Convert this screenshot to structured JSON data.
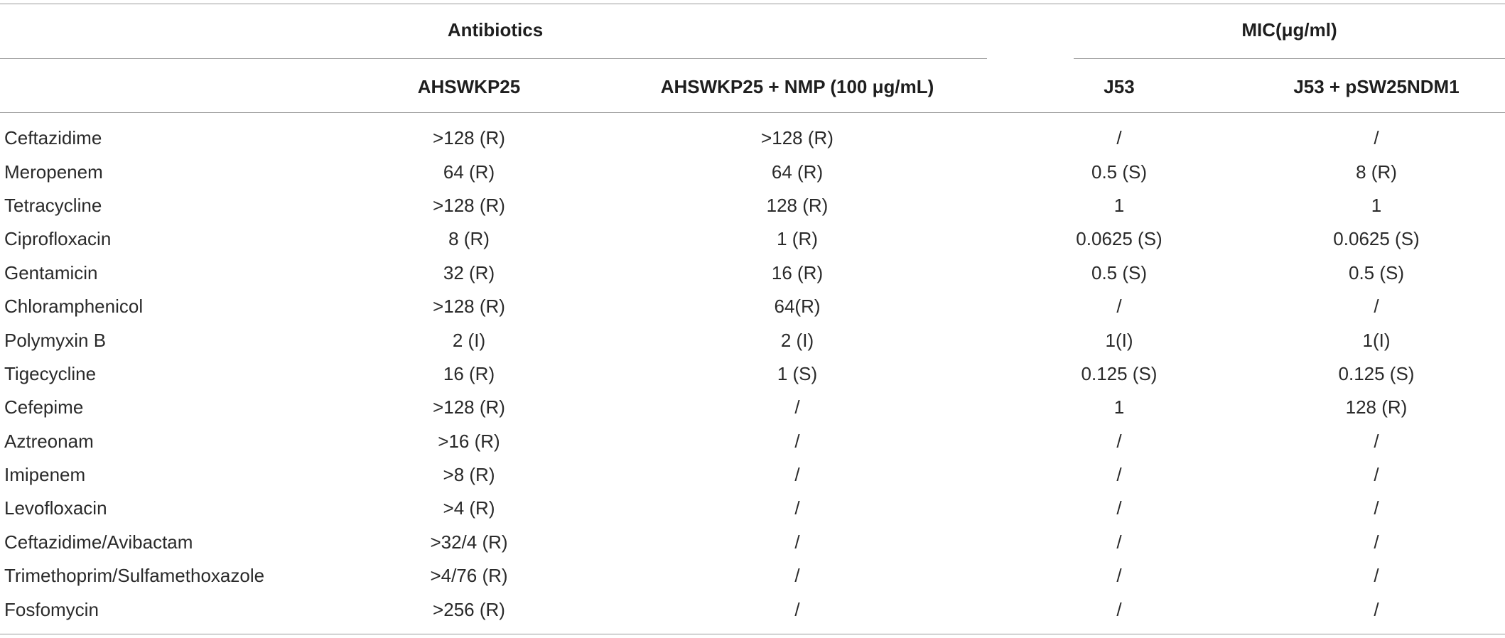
{
  "table": {
    "group_headers": [
      "Antibiotics",
      "MIC(μg/ml)"
    ],
    "columns": [
      "",
      "AHSWKP25",
      "AHSWKP25 + NMP (100 μg/mL)",
      "J53",
      "J53 + pSW25NDM1"
    ],
    "rows": [
      [
        "Ceftazidime",
        ">128 (R)",
        ">128 (R)",
        "/",
        "/"
      ],
      [
        "Meropenem",
        "64 (R)",
        "64 (R)",
        "0.5 (S)",
        "8 (R)"
      ],
      [
        "Tetracycline",
        ">128 (R)",
        "128 (R)",
        "1",
        "1"
      ],
      [
        "Ciprofloxacin",
        "8 (R)",
        "1 (R)",
        "0.0625 (S)",
        "0.0625 (S)"
      ],
      [
        "Gentamicin",
        "32 (R)",
        "16 (R)",
        "0.5 (S)",
        "0.5 (S)"
      ],
      [
        "Chloramphenicol",
        ">128 (R)",
        "64(R)",
        "/",
        "/"
      ],
      [
        "Polymyxin B",
        "2 (I)",
        "2 (I)",
        "1(I)",
        "1(I)"
      ],
      [
        "Tigecycline",
        "16 (R)",
        "1 (S)",
        "0.125 (S)",
        "0.125 (S)"
      ],
      [
        "Cefepime",
        ">128 (R)",
        "/",
        "1",
        "128 (R)"
      ],
      [
        "Aztreonam",
        ">16 (R)",
        "/",
        "/",
        "/"
      ],
      [
        "Imipenem",
        ">8 (R)",
        "/",
        "/",
        "/"
      ],
      [
        "Levofloxacin",
        ">4 (R)",
        "/",
        "/",
        "/"
      ],
      [
        "Ceftazidime/Avibactam",
        ">32/4 (R)",
        "/",
        "/",
        "/"
      ],
      [
        "Trimethoprim/Sulfamethoxazole",
        ">4/76 (R)",
        "/",
        "/",
        "/"
      ],
      [
        "Fosfomycin",
        ">256 (R)",
        "/",
        "/",
        "/"
      ]
    ]
  }
}
